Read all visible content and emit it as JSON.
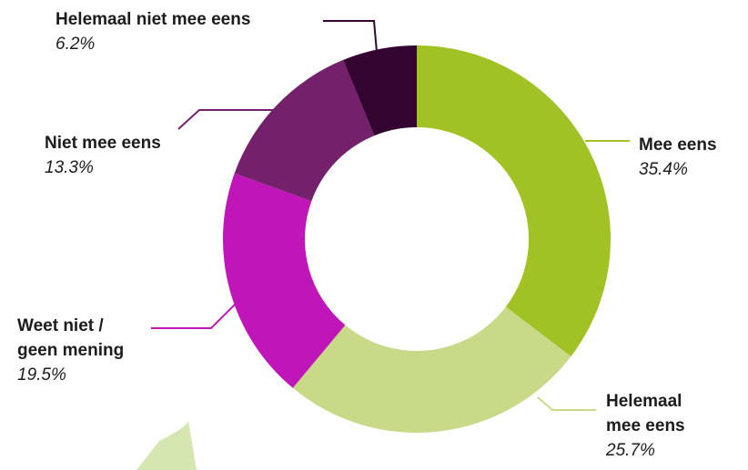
{
  "chart_data": {
    "type": "pie",
    "donut": true,
    "slices": [
      {
        "label": "Mee eens",
        "value": 35.4,
        "value_label": "35.4%",
        "color": "#a0c224"
      },
      {
        "label": "Helemaal mee eens",
        "value": 25.7,
        "value_label": "25.7%",
        "color": "#c8da88"
      },
      {
        "label": "Weet niet / geen mening",
        "value": 19.5,
        "value_label": "19.5%",
        "color": "#c015b8"
      },
      {
        "label": "Niet mee eens",
        "value": 13.3,
        "value_label": "13.3%",
        "color": "#74206b"
      },
      {
        "label": "Helemaal niet mee eens",
        "value": 6.2,
        "value_label": "6.2%",
        "color": "#340530"
      }
    ]
  },
  "labels": {
    "mee_eens": {
      "name": "Mee eens",
      "pct": "35.4%"
    },
    "helemaal_mee_eens": {
      "name_line1": "Helemaal",
      "name_line2": "mee eens",
      "pct": "25.7%"
    },
    "weet_niet": {
      "name_line1": "Weet niet /",
      "name_line2": "geen mening",
      "pct": "19.5%"
    },
    "niet_mee_eens": {
      "name": "Niet mee eens",
      "pct": "13.3%"
    },
    "helemaal_niet_mee_eens": {
      "name": "Helemaal niet mee eens",
      "pct": "6.2%"
    }
  },
  "decoration_color": "#d6e6b0"
}
